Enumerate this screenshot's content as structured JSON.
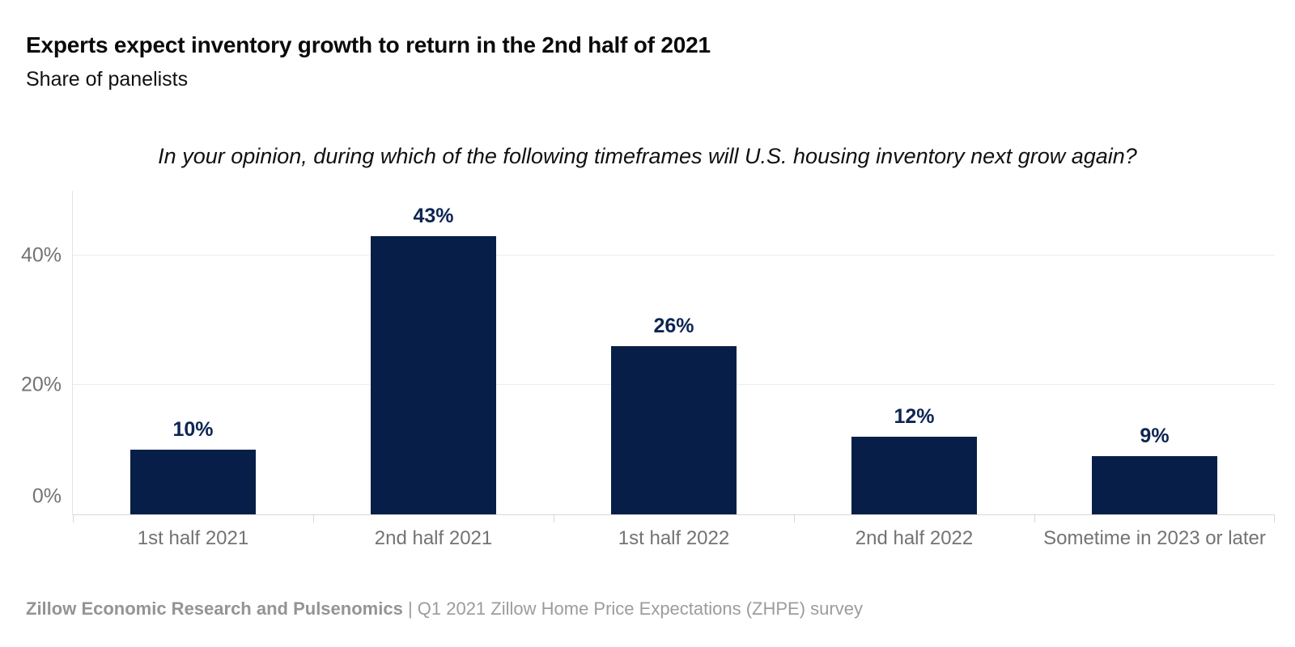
{
  "chart_data": {
    "type": "bar",
    "title": "Experts expect inventory growth to return in the 2nd half of 2021",
    "subtitle": "Share of panelists",
    "question": "In your opinion, during which of the following timeframes will U.S. housing inventory next grow again?",
    "categories": [
      "1st half 2021",
      "2nd half 2021",
      "1st half 2022",
      "2nd half 2022",
      "Sometime in 2023 or later"
    ],
    "values": [
      10,
      43,
      26,
      12,
      9
    ],
    "value_labels": [
      "10%",
      "43%",
      "26%",
      "12%",
      "9%"
    ],
    "xlabel": "",
    "ylabel": "",
    "ylim": [
      0,
      50
    ],
    "yticks": [
      0,
      20,
      40
    ],
    "ytick_labels": [
      "0%",
      "20%",
      "40%"
    ],
    "grid": "horizontal",
    "legend": "none",
    "bar_color": "#071f48",
    "value_label_color": "#0d2553",
    "axis_text_color": "#737373",
    "gridline_color": "#ededed",
    "axis_line_color": "#d8d8d8"
  },
  "footer": {
    "source_bold": "Zillow Economic Research and Pulsenomics",
    "source_rest": "| Q1 2021 Zillow Home Price Expectations (ZHPE) survey"
  }
}
